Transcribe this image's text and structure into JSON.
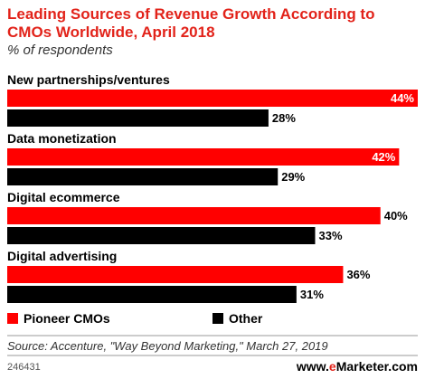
{
  "header": {
    "title_line1": "Leading Sources of Revenue Growth According to",
    "title_line2": "CMOs Worldwide, April 2018",
    "subtitle": "% of respondents"
  },
  "chart_data": {
    "type": "bar",
    "orientation": "horizontal",
    "categories": [
      "New partnerships/ventures",
      "Data monetization",
      "Digital ecommerce",
      "Digital advertising"
    ],
    "series": [
      {
        "name": "Pioneer CMOs",
        "values": [
          44,
          42,
          40,
          36
        ],
        "labels": [
          "44%",
          "42%",
          "40%",
          "36%"
        ],
        "color": "#ff0000"
      },
      {
        "name": "Other",
        "values": [
          28,
          29,
          33,
          31
        ],
        "labels": [
          "28%",
          "29%",
          "33%",
          "31%"
        ],
        "color": "#000000"
      }
    ],
    "xlim": [
      0,
      44
    ],
    "grid": false,
    "legend_position": "bottom-left"
  },
  "footer": {
    "source": "Source: Accenture, \"Way Beyond Marketing,\" March 27, 2019",
    "chart_id": "246431",
    "brand_prefix": "www.",
    "brand_e": "e",
    "brand_rest": "Marketer.com"
  },
  "colors": {
    "accent": "#e2231a",
    "series1": "#ff0000",
    "series2": "#000000",
    "rule": "#999999"
  }
}
